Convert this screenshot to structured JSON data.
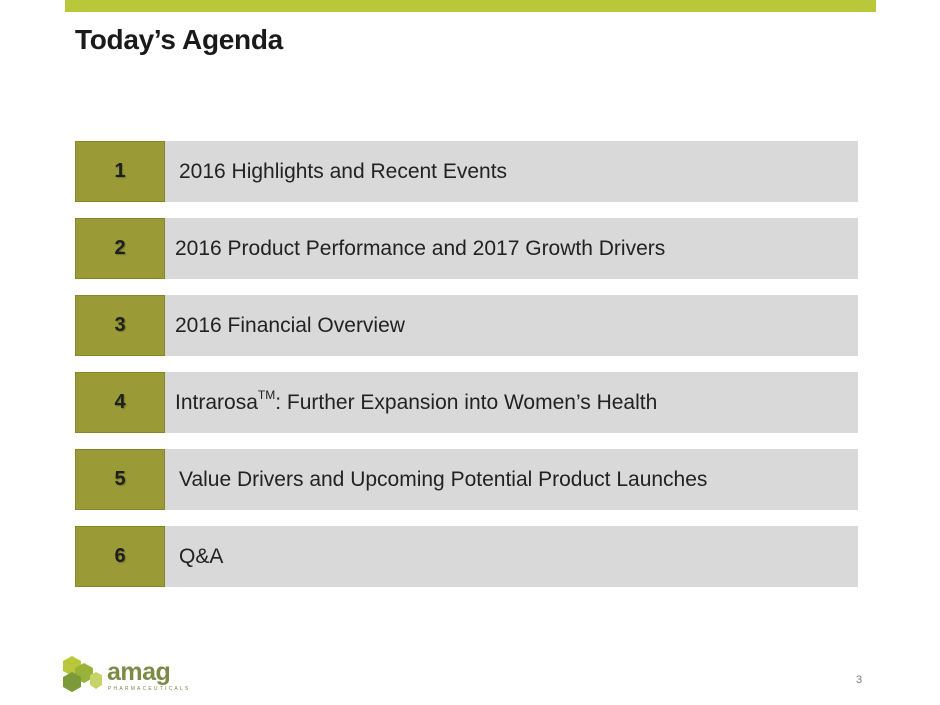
{
  "slide": {
    "title": "Today’s Agenda",
    "page_number": "3",
    "accent_color": "#b9c73a",
    "number_box_color": "#9a9a36",
    "row_color": "#d9d9d9"
  },
  "agenda": {
    "items": [
      {
        "number": "1",
        "label": "2016 Highlights and Recent Events"
      },
      {
        "number": "2",
        "label": "2016 Product Performance and 2017 Growth Drivers"
      },
      {
        "number": "3",
        "label": "2016 Financial Overview"
      },
      {
        "number": "4",
        "label_prefix": "Intrarosa",
        "label_sup": "TM",
        "label_suffix": ": Further Expansion into Women’s Health"
      },
      {
        "number": "5",
        "label": "Value Drivers and Upcoming Potential Product Launches"
      },
      {
        "number": "6",
        "label": "Q&A"
      }
    ]
  },
  "logo": {
    "icon": "amag-logo-icon",
    "wordmark": "amag",
    "subtext": "PHARMACEUTICALS"
  }
}
